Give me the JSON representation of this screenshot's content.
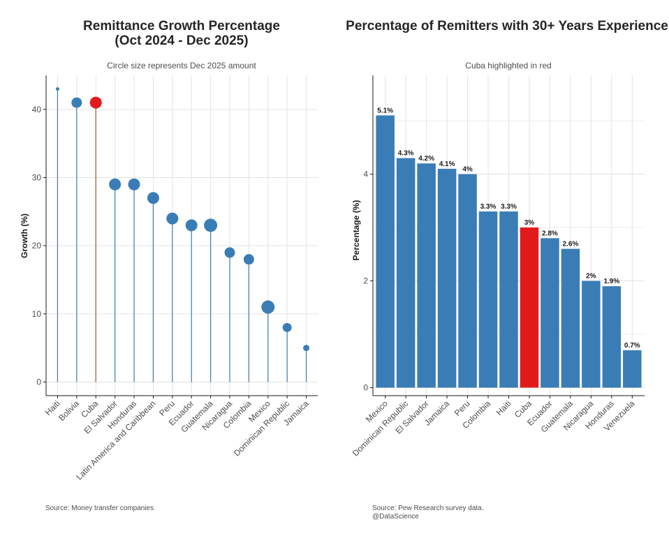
{
  "colors": {
    "base": "#3a7db6",
    "highlight": "#e31a1c",
    "stem": "#3a7db6",
    "highlight_stem": "#a0522d"
  },
  "chart_data": [
    {
      "type": "lollipop",
      "title_lines": [
        "Remittance Growth Percentage",
        "(Oct 2024 - Dec 2025)"
      ],
      "subtitle": "Circle size represents Dec 2025 amount",
      "xlabel": "",
      "ylabel": "Growth (%)",
      "ylim": [
        -2,
        45
      ],
      "yticks": [
        0,
        10,
        20,
        30,
        40
      ],
      "caption": "Source: Money transfer companies",
      "categories": [
        "Haiti",
        "Bolivia",
        "Cuba",
        "El Salvador",
        "Honduras",
        "Latin America and Caribbean",
        "Peru",
        "Ecuador",
        "Guatemala",
        "Nicaragua",
        "Colombia",
        "Mexico",
        "Dominican Republic",
        "Jamaica"
      ],
      "values": [
        43,
        41,
        41,
        29,
        29,
        27,
        24,
        23,
        23,
        19,
        18,
        11,
        8,
        5
      ],
      "relative_size": [
        1,
        6,
        7,
        7,
        7,
        7,
        7,
        7,
        8,
        6,
        6,
        8,
        5,
        3
      ],
      "highlight": "Cuba"
    },
    {
      "type": "bar",
      "title": "Percentage of Remitters with 30+ Years Experience",
      "subtitle": "Cuba highlighted in red",
      "xlabel": "",
      "ylabel": "Percentage (%)",
      "ylim": [
        -0.15,
        5.85
      ],
      "yticks": [
        0,
        2,
        4
      ],
      "caption_lines": [
        "Source: Pew Research survey data.",
        "@DataScience"
      ],
      "categories": [
        "Mexico",
        "Dominican Republic",
        "El Salvador",
        "Jamaica",
        "Peru",
        "Colombia",
        "Haiti",
        "Cuba",
        "Ecuador",
        "Guatemala",
        "Nicaragua",
        "Honduras",
        "Venezuela"
      ],
      "values": [
        5.1,
        4.3,
        4.2,
        4.1,
        4.0,
        3.3,
        3.3,
        3.0,
        2.8,
        2.6,
        2.0,
        1.9,
        0.7
      ],
      "data_labels": [
        "5.1%",
        "4.3%",
        "4.2%",
        "4.1%",
        "4%",
        "3.3%",
        "3.3%",
        "3%",
        "2.8%",
        "2.6%",
        "2%",
        "1.9%",
        "0.7%"
      ],
      "highlight": "Cuba"
    }
  ]
}
